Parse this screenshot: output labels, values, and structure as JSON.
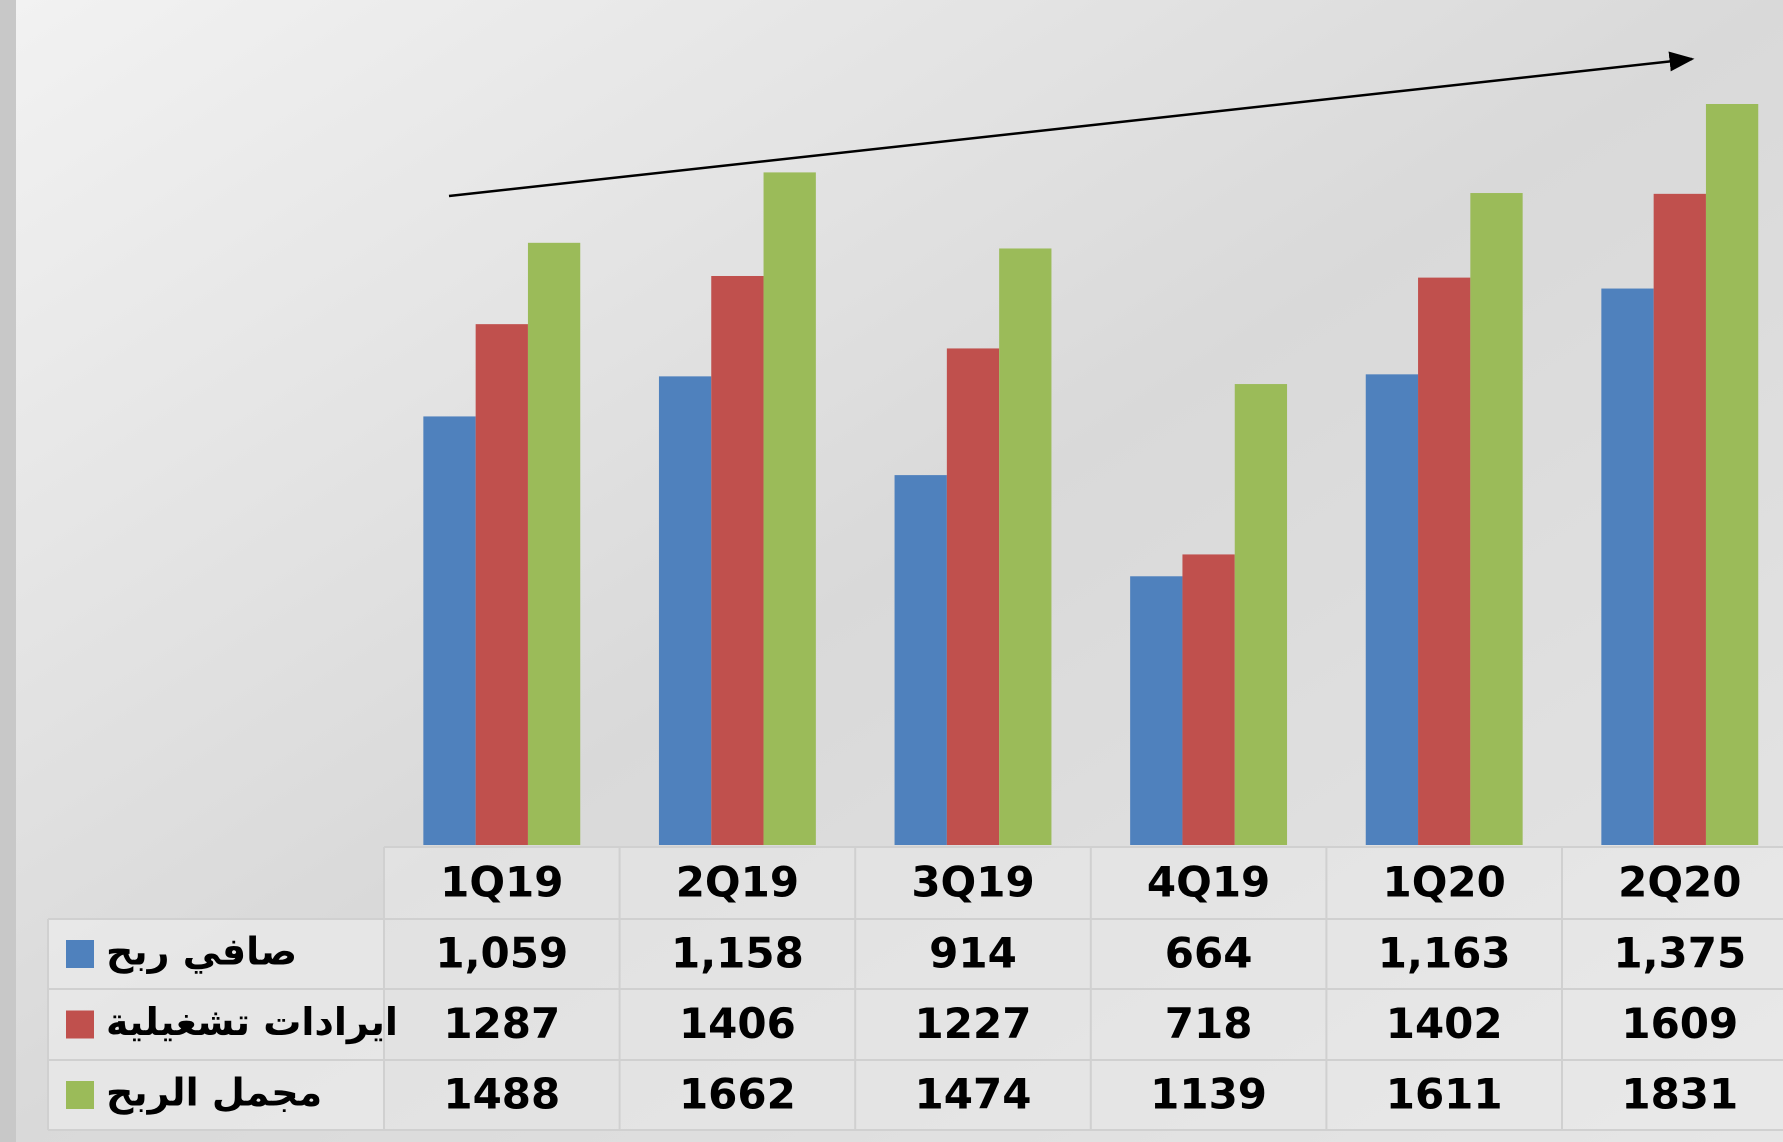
{
  "chart_data": {
    "type": "bar",
    "categories": [
      "1Q19",
      "2Q19",
      "3Q19",
      "4Q19",
      "1Q20",
      "2Q20"
    ],
    "series": [
      {
        "name": "صافي ربح",
        "color": "#4f81bd",
        "values": [
          1059,
          1158,
          914,
          664,
          1163,
          1375
        ],
        "value_labels": [
          "1,059",
          "1,158",
          "914",
          "664",
          "1,163",
          "1,375"
        ]
      },
      {
        "name": "ايرادات تشغيلية",
        "color": "#c0504d",
        "values": [
          1287,
          1406,
          1227,
          718,
          1402,
          1609
        ]
      },
      {
        "name": "مجمل الربح",
        "color": "#9bbb59",
        "values": [
          1488,
          1662,
          1474,
          1139,
          1611,
          1831
        ]
      }
    ]
  }
}
